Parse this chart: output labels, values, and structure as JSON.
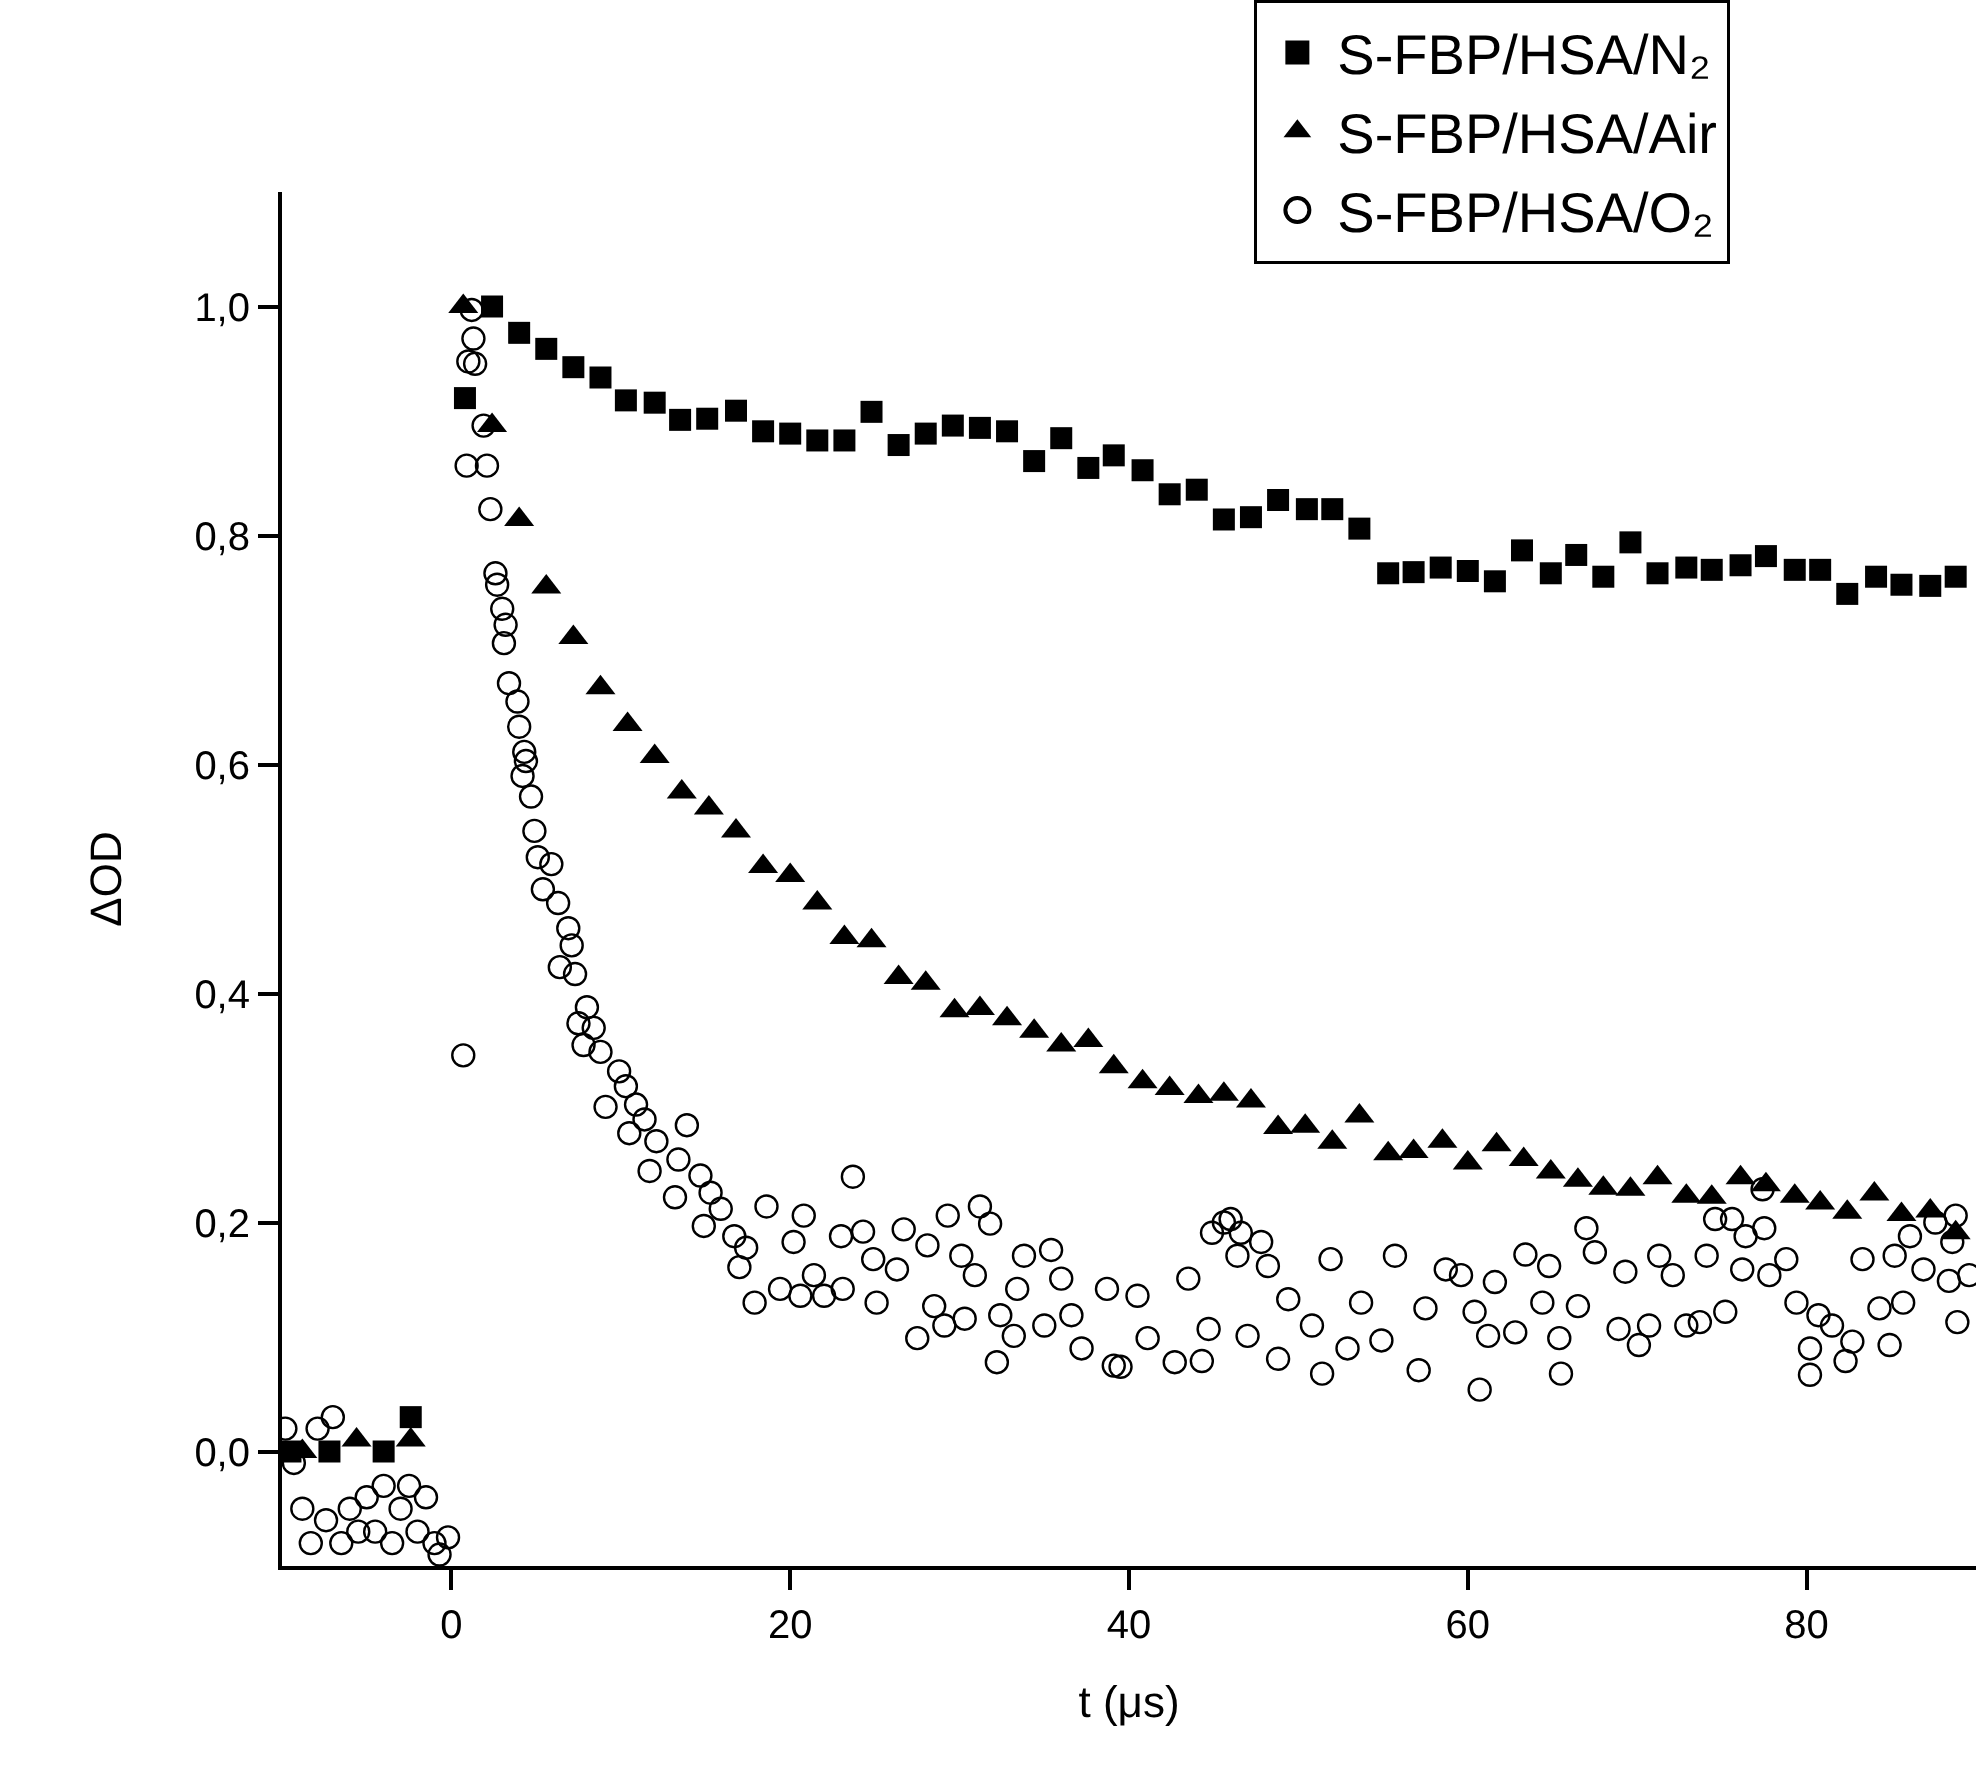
{
  "chart_data": {
    "type": "scatter",
    "xlabel": "t (μs)",
    "ylabel": "ΔOD",
    "xlim": [
      -10,
      90
    ],
    "ylim": [
      -0.1,
      1.1
    ],
    "xticks": [
      0,
      20,
      40,
      60,
      80
    ],
    "yticks": [
      {
        "value": 0,
        "label": "0,0"
      },
      {
        "value": 0.2,
        "label": "0,2"
      },
      {
        "value": 0.4,
        "label": "0,4"
      },
      {
        "value": 0.6,
        "label": "0,6"
      },
      {
        "value": 0.8,
        "label": "0,8"
      },
      {
        "value": 1,
        "label": "1,0"
      }
    ],
    "grid": false,
    "legend": "top right",
    "series": [
      {
        "name": "S-FBP/HSA/N₂",
        "color": "#000000",
        "marker": "square",
        "x": [
          -9.5,
          -7.2,
          -4.0,
          -2.4,
          0.8,
          2.4,
          4.0,
          5.6,
          7.2,
          8.8,
          10.3,
          12.0,
          13.5,
          15.1,
          16.8,
          18.4,
          20.0,
          21.6,
          23.2,
          24.8,
          26.4,
          28.0,
          29.6,
          31.2,
          32.8,
          34.4,
          36.0,
          37.6,
          39.1,
          40.8,
          42.4,
          44.0,
          45.6,
          47.2,
          48.8,
          50.5,
          52.0,
          53.6,
          55.3,
          56.8,
          58.4,
          60.0,
          61.6,
          63.2,
          64.9,
          66.4,
          68.0,
          69.6,
          71.2,
          72.9,
          74.4,
          76.1,
          77.6,
          79.3,
          80.8,
          82.4,
          84.1,
          85.6,
          87.3,
          88.8
        ],
        "values": [
          0.0,
          0.0,
          0.0,
          0.03,
          0.92,
          1.0,
          0.977,
          0.963,
          0.947,
          0.938,
          0.918,
          0.916,
          0.901,
          0.902,
          0.909,
          0.891,
          0.889,
          0.883,
          0.883,
          0.908,
          0.879,
          0.889,
          0.896,
          0.894,
          0.891,
          0.865,
          0.885,
          0.859,
          0.87,
          0.857,
          0.836,
          0.84,
          0.814,
          0.816,
          0.831,
          0.823,
          0.823,
          0.806,
          0.767,
          0.768,
          0.772,
          0.769,
          0.76,
          0.787,
          0.767,
          0.783,
          0.764,
          0.794,
          0.767,
          0.772,
          0.77,
          0.774,
          0.782,
          0.77,
          0.77,
          0.749,
          0.764,
          0.757,
          0.756,
          0.764
        ]
      },
      {
        "name": "S-FBP/HSA/Air",
        "color": "#000000",
        "marker": "triangle",
        "x": [
          -8.8,
          -5.6,
          -2.4,
          0.7,
          2.4,
          4.0,
          5.6,
          7.2,
          8.8,
          10.4,
          12.0,
          13.6,
          15.2,
          16.8,
          18.4,
          20.0,
          21.6,
          23.2,
          24.8,
          26.4,
          28.0,
          29.7,
          31.2,
          32.8,
          34.4,
          36.0,
          37.6,
          39.1,
          40.8,
          42.4,
          44.1,
          45.6,
          47.2,
          48.8,
          50.4,
          52.0,
          53.6,
          55.3,
          56.8,
          58.5,
          60.0,
          61.7,
          63.3,
          64.9,
          66.5,
          68.0,
          69.6,
          71.2,
          72.9,
          74.4,
          76.1,
          77.6,
          79.3,
          80.8,
          82.4,
          84.0,
          85.6,
          87.3,
          88.8
        ],
        "values": [
          0.0,
          0.01,
          0.01,
          1.0,
          0.896,
          0.814,
          0.755,
          0.711,
          0.667,
          0.635,
          0.607,
          0.576,
          0.562,
          0.542,
          0.511,
          0.503,
          0.479,
          0.449,
          0.446,
          0.414,
          0.409,
          0.385,
          0.387,
          0.378,
          0.367,
          0.355,
          0.359,
          0.336,
          0.323,
          0.317,
          0.31,
          0.312,
          0.306,
          0.283,
          0.284,
          0.27,
          0.293,
          0.26,
          0.262,
          0.271,
          0.252,
          0.268,
          0.255,
          0.244,
          0.237,
          0.23,
          0.229,
          0.239,
          0.223,
          0.222,
          0.239,
          0.233,
          0.223,
          0.217,
          0.209,
          0.225,
          0.207,
          0.21,
          0.191
        ]
      },
      {
        "name": "S-FBP/HSA/O₂",
        "color": "#000000",
        "marker": "circle",
        "x": [
          -9.8,
          -9.3,
          -8.8,
          -8.3,
          -7.9,
          -7.4,
          -7.0,
          -6.5,
          -6.0,
          -5.5,
          -5.0,
          -4.5,
          -4.0,
          -3.5,
          -3.0,
          -2.5,
          -2.0,
          -1.5,
          -1.0,
          -0.7,
          -0.2,
          0.7,
          1.2,
          1.3,
          1.4,
          1.0,
          1.9,
          0.9,
          2.1,
          2.3,
          2.6,
          2.7,
          3.0,
          3.2,
          3.1,
          3.4,
          3.9,
          4.0,
          4.3,
          4.4,
          4.2,
          4.7,
          4.9,
          5.1,
          5.9,
          5.4,
          6.3,
          6.9,
          7.1,
          6.4,
          7.3,
          8.0,
          7.5,
          8.4,
          7.8,
          8.8,
          9.9,
          9.1,
          10.3,
          10.9,
          11.4,
          10.5,
          12.1,
          11.7,
          13.2,
          13.9,
          13.4,
          14.7,
          15.3,
          15.9,
          14.9,
          16.7,
          17.4,
          17.0,
          17.9,
          18.6,
          19.4,
          20.8,
          20.2,
          20.6,
          21.4,
          22.0,
          23.0,
          23.7,
          24.3,
          23.1,
          24.9,
          25.1,
          26.7,
          26.3,
          27.5,
          28.1,
          28.5,
          29.1,
          29.3,
          30.1,
          30.3,
          31.2,
          31.8,
          30.9,
          32.2,
          33.2,
          32.4,
          33.8,
          33.4,
          35.4,
          35.0,
          36.0,
          36.6,
          37.2,
          38.7,
          39.1,
          39.5,
          40.5,
          41.1,
          42.7,
          43.5,
          44.3,
          44.7,
          44.9,
          45.6,
          46.0,
          46.6,
          46.4,
          47.8,
          48.2,
          47.0,
          48.8,
          49.4,
          50.8,
          51.4,
          51.9,
          52.9,
          53.7,
          54.9,
          55.7,
          57.1,
          57.5,
          58.7,
          59.6,
          60.4,
          60.7,
          61.2,
          61.6,
          62.8,
          63.4,
          64.4,
          64.8,
          65.5,
          65.4,
          66.5,
          67.0,
          67.5,
          68.9,
          69.3,
          70.1,
          70.7,
          71.3,
          72.1,
          72.9,
          73.7,
          74.1,
          74.6,
          75.2,
          75.6,
          76.4,
          76.2,
          77.4,
          77.5,
          77.8,
          78.8,
          79.4,
          80.2,
          80.2,
          80.7,
          81.5,
          82.3,
          82.7,
          83.3,
          84.3,
          84.9,
          85.2,
          86.1,
          85.7,
          86.9,
          87.6,
          88.4,
          88.6,
          88.8,
          88.9,
          89.6
        ],
        "values": [
          0.02,
          -0.01,
          -0.05,
          -0.08,
          0.02,
          -0.06,
          0.03,
          -0.08,
          -0.05,
          -0.07,
          -0.04,
          -0.07,
          -0.03,
          -0.08,
          -0.05,
          -0.03,
          -0.07,
          -0.04,
          -0.08,
          -0.09,
          -0.075,
          0.346,
          0.997,
          0.972,
          0.95,
          0.952,
          0.896,
          0.861,
          0.861,
          0.823,
          0.767,
          0.757,
          0.736,
          0.722,
          0.706,
          0.671,
          0.655,
          0.633,
          0.611,
          0.603,
          0.59,
          0.572,
          0.542,
          0.519,
          0.513,
          0.491,
          0.479,
          0.457,
          0.442,
          0.423,
          0.417,
          0.388,
          0.374,
          0.37,
          0.355,
          0.349,
          0.332,
          0.301,
          0.319,
          0.303,
          0.29,
          0.278,
          0.271,
          0.245,
          0.222,
          0.285,
          0.255,
          0.241,
          0.226,
          0.212,
          0.197,
          0.188,
          0.178,
          0.161,
          0.13,
          0.214,
          0.142,
          0.206,
          0.183,
          0.136,
          0.154,
          0.136,
          0.188,
          0.24,
          0.192,
          0.142,
          0.168,
          0.13,
          0.194,
          0.159,
          0.099,
          0.18,
          0.127,
          0.11,
          0.206,
          0.171,
          0.116,
          0.214,
          0.199,
          0.154,
          0.078,
          0.101,
          0.119,
          0.171,
          0.142,
          0.176,
          0.11,
          0.151,
          0.119,
          0.09,
          0.142,
          0.075,
          0.074,
          0.136,
          0.099,
          0.078,
          0.151,
          0.079,
          0.107,
          0.191,
          0.2,
          0.203,
          0.191,
          0.171,
          0.183,
          0.162,
          0.101,
          0.081,
          0.133,
          0.11,
          0.068,
          0.168,
          0.09,
          0.13,
          0.097,
          0.171,
          0.071,
          0.125,
          0.159,
          0.154,
          0.122,
          0.054,
          0.101,
          0.148,
          0.104,
          0.172,
          0.13,
          0.162,
          0.068,
          0.099,
          0.127,
          0.195,
          0.174,
          0.107,
          0.157,
          0.093,
          0.11,
          0.171,
          0.154,
          0.11,
          0.113,
          0.171,
          0.203,
          0.122,
          0.203,
          0.188,
          0.159,
          0.229,
          0.195,
          0.154,
          0.168,
          0.13,
          0.09,
          0.067,
          0.119,
          0.11,
          0.079,
          0.096,
          0.168,
          0.125,
          0.093,
          0.171,
          0.188,
          0.13,
          0.159,
          0.2,
          0.149,
          0.183,
          0.206,
          0.113,
          0.154
        ]
      }
    ]
  }
}
